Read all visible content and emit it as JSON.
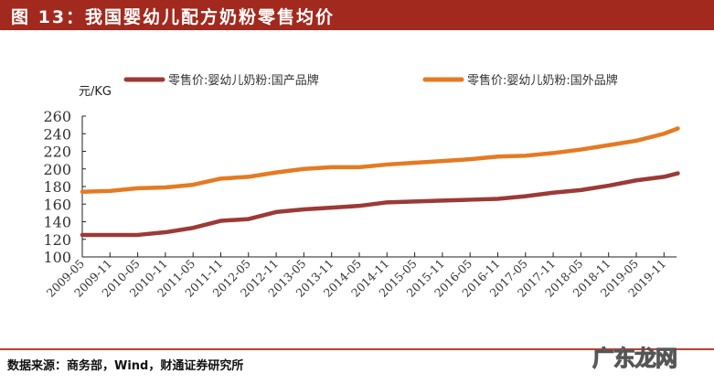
{
  "title": "图 13：我国婴幼儿配方奶粉零售均价",
  "source": "数据来源：商务部，Wind，财通证券研究所",
  "watermark": "广东龙网",
  "chart_data": {
    "type": "line",
    "ylabel": "元/KG",
    "ylim": [
      100,
      260
    ],
    "yticks": [
      100,
      120,
      140,
      160,
      180,
      200,
      220,
      240,
      260
    ],
    "xtick_labels": [
      "2009-05",
      "2009-11",
      "2010-05",
      "2010-11",
      "2011-05",
      "2011-11",
      "2012-05",
      "2012-11",
      "2013-05",
      "2013-11",
      "2014-05",
      "2014-11",
      "2015-05",
      "2015-11",
      "2016-05",
      "2016-11",
      "2017-05",
      "2017-11",
      "2018-05",
      "2018-11",
      "2019-05",
      "2019-11"
    ],
    "x": [
      "2009-05",
      "2009-11",
      "2010-05",
      "2010-11",
      "2011-05",
      "2011-11",
      "2012-05",
      "2012-11",
      "2013-05",
      "2013-11",
      "2014-05",
      "2014-11",
      "2015-05",
      "2015-11",
      "2016-05",
      "2016-11",
      "2017-05",
      "2017-11",
      "2018-05",
      "2018-11",
      "2019-05",
      "2019-11",
      "2020-02"
    ],
    "grid": false,
    "legend": "top",
    "series": [
      {
        "name": "零售价:婴幼儿奶粉:国产品牌",
        "color": "#9b3a36",
        "values": [
          125,
          125,
          125,
          128,
          133,
          141,
          143,
          151,
          154,
          156,
          158,
          162,
          163,
          164,
          165,
          166,
          169,
          173,
          176,
          181,
          187,
          191,
          195
        ]
      },
      {
        "name": "零售价:婴幼儿奶粉:国外品牌",
        "color": "#e57a22",
        "values": [
          174,
          175,
          178,
          179,
          182,
          189,
          191,
          196,
          200,
          202,
          202,
          205,
          207,
          209,
          211,
          214,
          215,
          218,
          222,
          227,
          232,
          240,
          246
        ]
      }
    ]
  }
}
